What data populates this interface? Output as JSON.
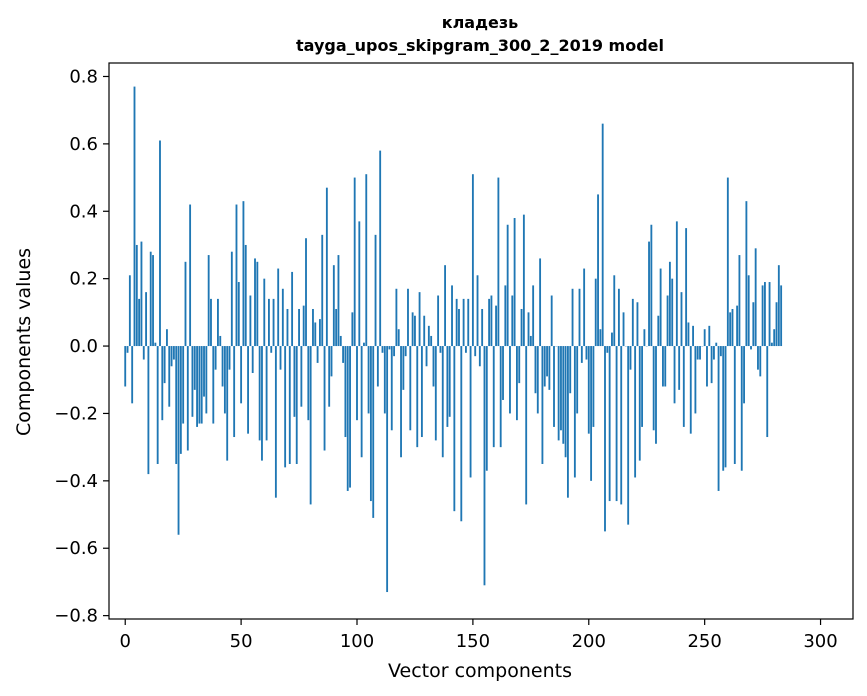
{
  "chart_data": {
    "type": "bar",
    "title": "кладезь",
    "subtitle": "tayga_upos_skipgram_300_2_2019 model",
    "xlabel": "Vector components",
    "ylabel": "Components values",
    "xlim": [
      -7,
      314
    ],
    "ylim": [
      -0.81,
      0.84
    ],
    "xticks": [
      0,
      50,
      100,
      150,
      200,
      250,
      300
    ],
    "yticks": [
      -0.8,
      -0.6,
      -0.4,
      -0.2,
      0.0,
      0.2,
      0.4,
      0.6,
      0.8
    ],
    "xtick_labels": [
      "0",
      "50",
      "100",
      "150",
      "200",
      "250",
      "300"
    ],
    "ytick_labels": [
      "−0.8",
      "−0.6",
      "−0.4",
      "−0.2",
      "0.0",
      "0.2",
      "0.4",
      "0.6",
      "0.8"
    ],
    "grid": false,
    "bar_color": "#1f77b4",
    "series": [
      {
        "values": [
          -0.12,
          -0.02,
          0.21,
          -0.17,
          0.77,
          0.3,
          0.14,
          0.31,
          -0.04,
          0.16,
          -0.38,
          0.28,
          0.27,
          0.01,
          -0.35,
          0.61,
          -0.22,
          -0.11,
          0.05,
          -0.18,
          -0.06,
          -0.04,
          -0.35,
          -0.56,
          -0.32,
          -0.23,
          0.25,
          -0.31,
          0.42,
          -0.21,
          -0.13,
          -0.24,
          -0.23,
          -0.23,
          -0.15,
          -0.2,
          0.27,
          0.14,
          -0.23,
          -0.07,
          0.14,
          0.03,
          -0.12,
          -0.2,
          -0.34,
          -0.07,
          0.28,
          -0.27,
          0.42,
          0.19,
          -0.17,
          0.43,
          0.3,
          -0.26,
          0.15,
          -0.08,
          0.26,
          0.25,
          -0.28,
          -0.34,
          0.2,
          -0.28,
          0.14,
          -0.02,
          0.14,
          -0.45,
          0.23,
          -0.07,
          0.17,
          -0.36,
          0.11,
          -0.35,
          0.22,
          -0.21,
          -0.35,
          0.11,
          -0.18,
          0.12,
          0.32,
          -0.22,
          -0.47,
          0.11,
          0.07,
          -0.05,
          0.08,
          0.33,
          -0.31,
          0.47,
          -0.18,
          -0.09,
          0.24,
          0.11,
          0.27,
          0.03,
          -0.05,
          -0.27,
          -0.43,
          -0.42,
          0.1,
          0.5,
          -0.22,
          0.37,
          -0.33,
          0.01,
          0.51,
          -0.2,
          -0.46,
          -0.51,
          0.33,
          -0.12,
          0.58,
          -0.02,
          -0.2,
          -0.73,
          -0.01,
          -0.25,
          -0.03,
          0.17,
          0.05,
          -0.33,
          -0.13,
          -0.03,
          0.17,
          -0.25,
          0.1,
          0.09,
          -0.3,
          0.16,
          -0.27,
          0.09,
          -0.06,
          0.06,
          0.03,
          -0.12,
          -0.28,
          0.15,
          -0.02,
          -0.33,
          0.24,
          -0.24,
          -0.21,
          0.18,
          -0.49,
          0.14,
          0.11,
          -0.52,
          0.14,
          -0.02,
          0.14,
          -0.39,
          0.51,
          -0.03,
          0.21,
          -0.06,
          0.11,
          -0.71,
          -0.37,
          0.14,
          0.15,
          -0.3,
          0.12,
          0.5,
          -0.3,
          -0.16,
          0.18,
          0.36,
          -0.2,
          0.15,
          0.38,
          -0.22,
          -0.11,
          0.11,
          0.39,
          -0.47,
          0.1,
          0.03,
          0.18,
          -0.14,
          -0.2,
          0.26,
          -0.35,
          -0.12,
          -0.09,
          -0.13,
          0.15,
          -0.24,
          0.0,
          -0.28,
          -0.25,
          -0.29,
          -0.33,
          -0.45,
          -0.14,
          0.17,
          -0.39,
          -0.2,
          0.17,
          -0.05,
          0.23,
          -0.04,
          -0.26,
          -0.4,
          -0.24,
          0.2,
          0.45,
          0.05,
          0.66,
          -0.55,
          -0.02,
          -0.46,
          0.04,
          0.21,
          -0.46,
          0.17,
          -0.47,
          0.1,
          0.0,
          -0.53,
          -0.07,
          0.14,
          -0.39,
          0.13,
          -0.34,
          -0.24,
          0.05,
          0.0,
          0.31,
          0.36,
          -0.25,
          -0.29,
          0.09,
          0.23,
          -0.12,
          -0.12,
          0.15,
          0.25,
          0.2,
          -0.17,
          0.37,
          -0.13,
          0.16,
          -0.24,
          0.35,
          0.07,
          -0.26,
          0.06,
          -0.2,
          -0.04,
          -0.04,
          0.0,
          0.05,
          -0.12,
          0.06,
          -0.11,
          -0.04,
          0.01,
          -0.43,
          -0.03,
          -0.37,
          -0.36,
          0.5,
          0.1,
          0.11,
          -0.35,
          0.12,
          0.27,
          -0.37,
          -0.17,
          0.43,
          0.21,
          -0.01,
          0.13,
          0.29,
          -0.07,
          -0.09,
          0.18,
          0.19,
          -0.27,
          0.19,
          0.01,
          0.05,
          0.13,
          0.24,
          0.18
        ]
      }
    ]
  }
}
